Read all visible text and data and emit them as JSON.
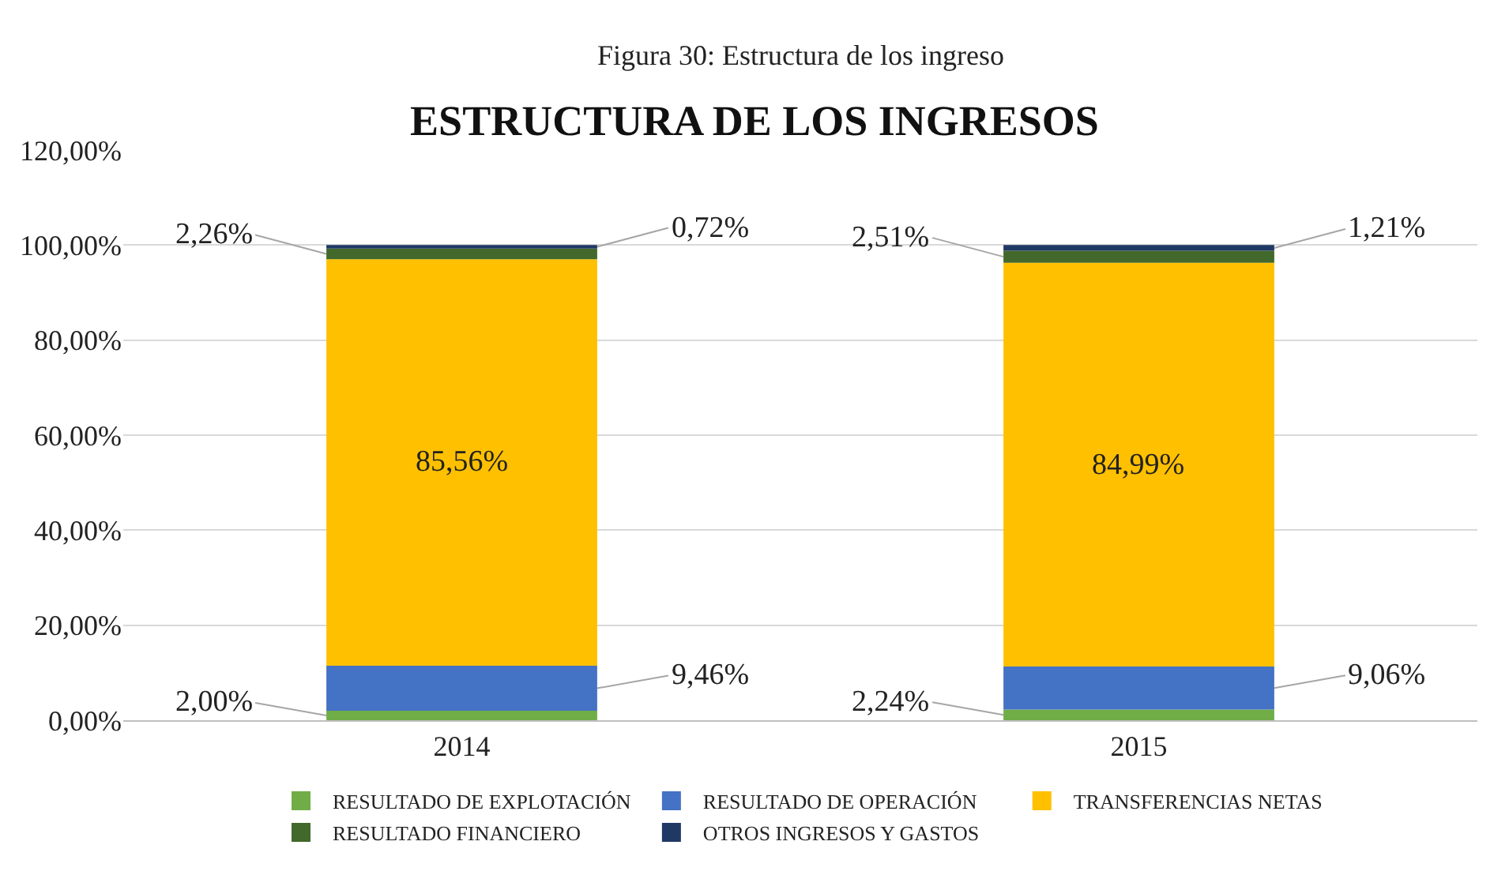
{
  "chart_data": {
    "type": "bar",
    "stacked": true,
    "title": "ESTRUCTURA DE LOS INGRESOS",
    "categories": [
      "2014",
      "2015"
    ],
    "series": [
      {
        "name": "RESULTADO DE EXPLOTACIÓN",
        "color": "#70ad47",
        "values": [
          2.0,
          2.24
        ],
        "value_labels": [
          "2,00%",
          "2,24%"
        ]
      },
      {
        "name": "RESULTADO DE OPERACIÓN",
        "color": "#4472c4",
        "values": [
          9.46,
          9.06
        ],
        "value_labels": [
          "9,46%",
          "9,06%"
        ]
      },
      {
        "name": "TRANSFERENCIAS NETAS",
        "color": "#ffc000",
        "values": [
          85.56,
          84.99
        ],
        "value_labels": [
          "85,56%",
          "84,99%"
        ]
      },
      {
        "name": "RESULTADO FINANCIERO",
        "color": "#43682b",
        "values": [
          2.26,
          2.51
        ],
        "value_labels": [
          "2,26%",
          "2,51%"
        ]
      },
      {
        "name": "OTROS INGRESOS Y GASTOS",
        "color": "#203864",
        "values": [
          0.72,
          1.21
        ],
        "value_labels": [
          "0,72%",
          "1,21%"
        ]
      }
    ],
    "ylim": [
      0,
      120
    ],
    "yticks": [
      {
        "value": 0,
        "label": "0,00%"
      },
      {
        "value": 20,
        "label": "20,00%"
      },
      {
        "value": 40,
        "label": "40,00%"
      },
      {
        "value": 60,
        "label": "60,00%"
      },
      {
        "value": 80,
        "label": "80,00%"
      },
      {
        "value": 100,
        "label": "100,00%"
      },
      {
        "value": 120,
        "label": "120,00%"
      }
    ],
    "grid": "y",
    "legend": "bottom",
    "annotations": [
      "Figura 30: Estructura de los ingreso"
    ]
  }
}
